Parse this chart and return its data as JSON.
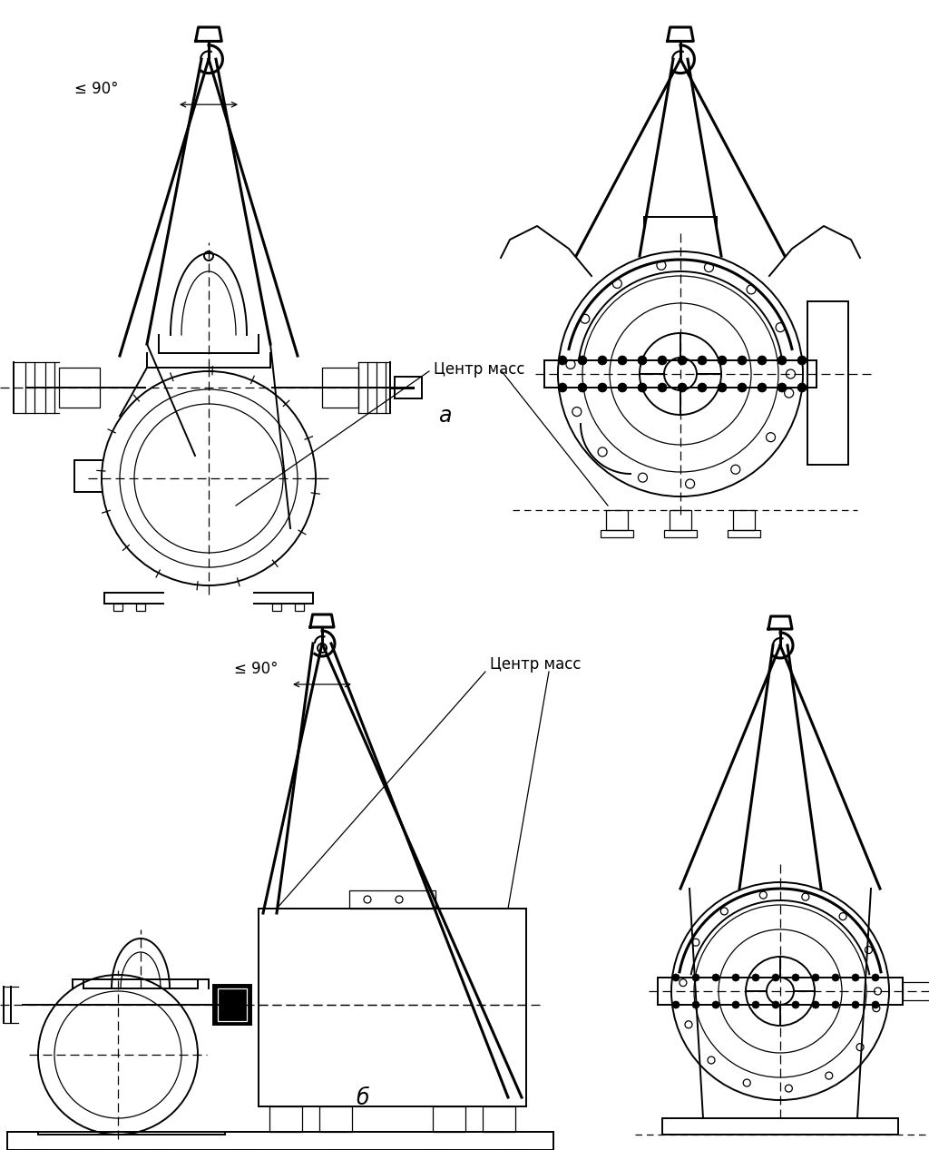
{
  "bg_color": "#ffffff",
  "line_color": "#000000",
  "lw_thick": 2.2,
  "lw_medium": 1.4,
  "lw_thin": 0.9,
  "label_a": "а",
  "label_b": "б",
  "text_center_mass": "Центр масс",
  "text_angle": "≤ 90°",
  "font_size_label": 16,
  "font_size_text": 11
}
